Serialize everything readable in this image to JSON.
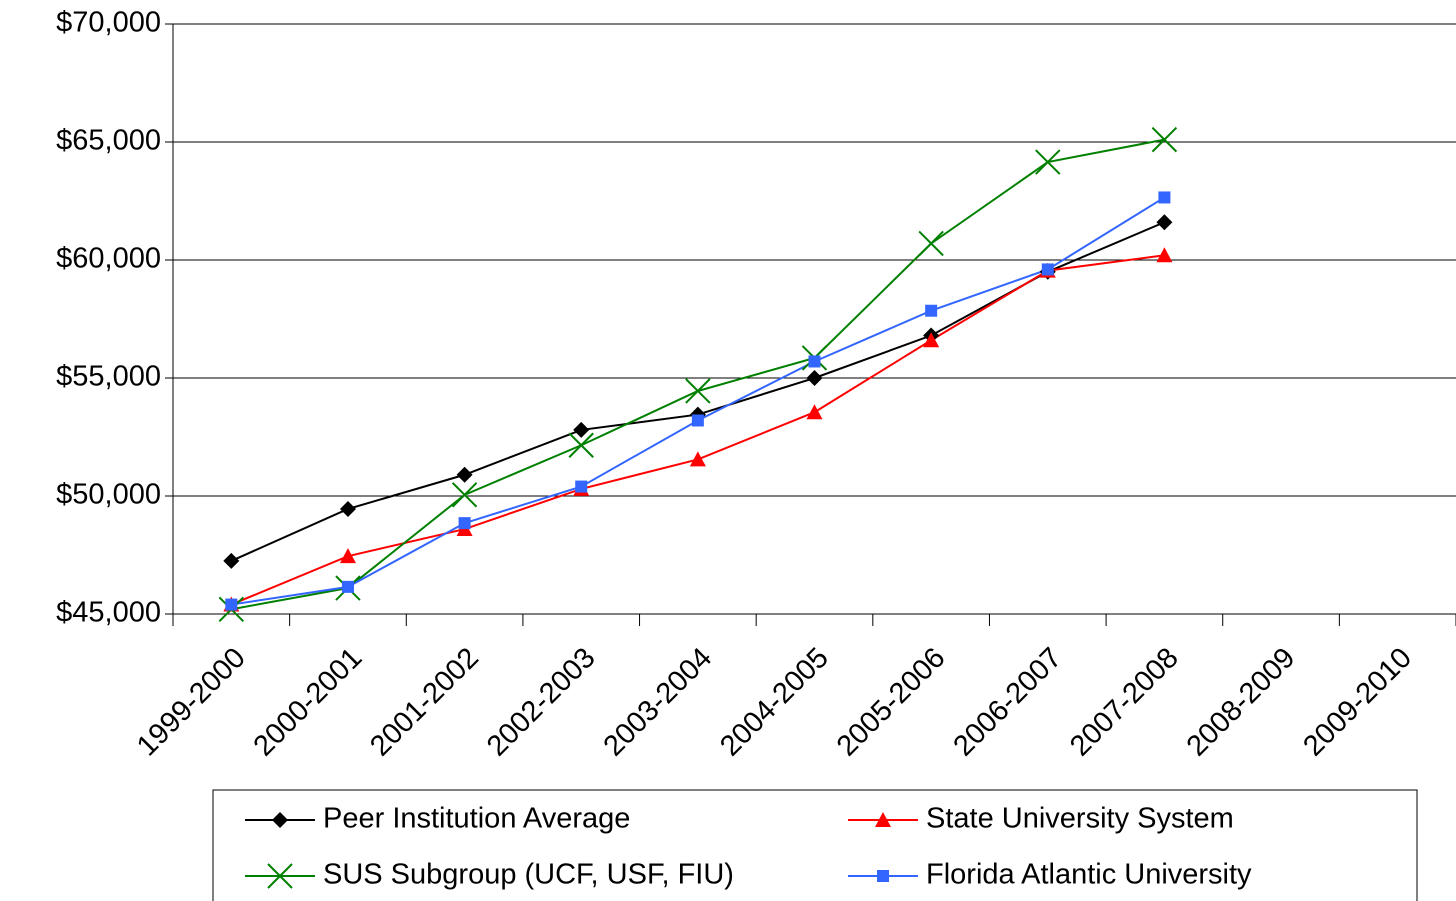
{
  "chart_data": {
    "type": "line",
    "categories": [
      "1999-2000",
      "2000-2001",
      "2001-2002",
      "2002-2003",
      "2003-2004",
      "2004-2005",
      "2005-2006",
      "2006-2007",
      "2007-2008",
      "2008-2009",
      "2009-2010"
    ],
    "series": [
      {
        "name": "Peer Institution Average",
        "color": "#000000",
        "marker": "diamond",
        "values": [
          47250,
          49450,
          50900,
          52800,
          53450,
          55000,
          56800,
          59500,
          61600,
          null,
          null
        ]
      },
      {
        "name": "State University System",
        "color": "#ff0000",
        "marker": "triangle",
        "values": [
          45400,
          47450,
          48600,
          50300,
          51550,
          53550,
          56600,
          59550,
          60200,
          null,
          null
        ]
      },
      {
        "name": "SUS Subgroup (UCF, USF, FIU)",
        "color": "#008000",
        "marker": "x",
        "values": [
          45200,
          46100,
          50050,
          52150,
          54450,
          55850,
          60700,
          64150,
          65100,
          null,
          null
        ]
      },
      {
        "name": "Florida Atlantic University",
        "color": "#3366ff",
        "marker": "square",
        "values": [
          45400,
          46150,
          48850,
          50400,
          53200,
          55700,
          57850,
          59600,
          62650,
          null,
          null
        ]
      }
    ],
    "ylim": [
      45000,
      70000
    ],
    "yticks": [
      {
        "value": 45000,
        "label": "$45,000"
      },
      {
        "value": 50000,
        "label": "$50,000"
      },
      {
        "value": 55000,
        "label": "$55,000"
      },
      {
        "value": 60000,
        "label": "$60,000"
      },
      {
        "value": 65000,
        "label": "$65,000"
      },
      {
        "value": 70000,
        "label": "$70,000"
      }
    ],
    "grid": true,
    "legend": "bottom"
  }
}
